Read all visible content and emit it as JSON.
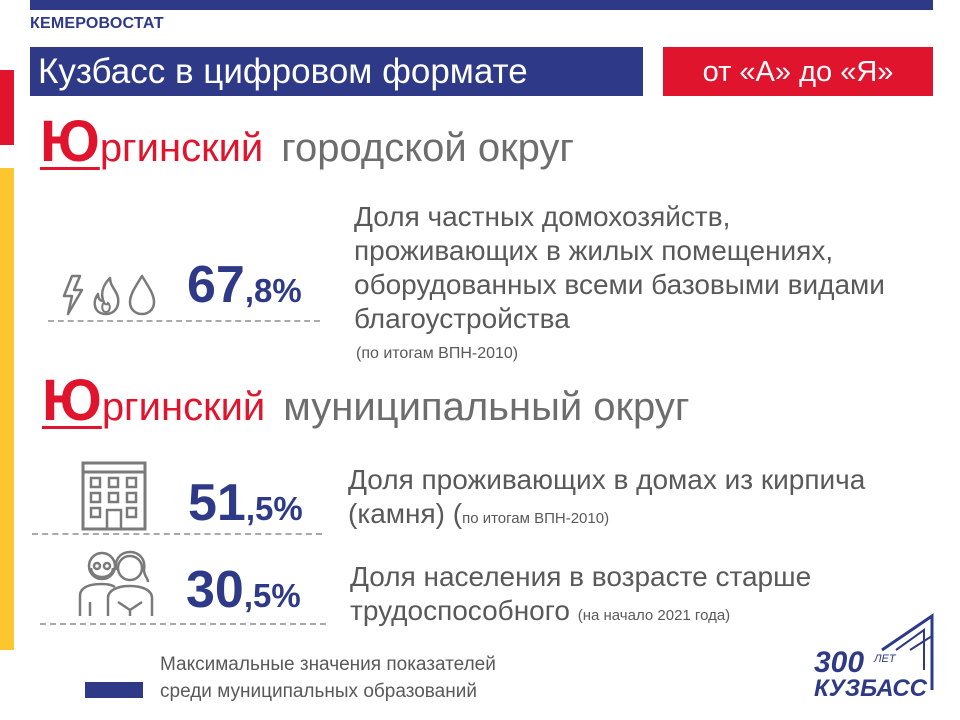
{
  "header": {
    "agency": "КЕМЕРОВОСТАТ",
    "title": "Кузбасс в цифровом формате",
    "subtitle": "от «А» до «Я»"
  },
  "sections": [
    {
      "first_letter": "Ю",
      "name_rest": "ргинский",
      "name_suffix": "городской округ",
      "stats": [
        {
          "icon": "utilities-icon",
          "value_int": "67",
          "value_frac": ",8%",
          "description": "Доля частных домохозяйств, проживающих в жилых помещениях, оборудованных всеми базовыми видами благоустройства",
          "note": "(по итогам ВПН-2010)"
        }
      ]
    },
    {
      "first_letter": "Ю",
      "name_rest": "ргинский",
      "name_suffix": "муниципальный округ",
      "stats": [
        {
          "icon": "building-icon",
          "value_int": "51",
          "value_frac": ",5%",
          "description": "Доля проживающих в домах из кирпича (камня) (",
          "note": "по итогам ВПН-2010)"
        },
        {
          "icon": "elderly-people-icon",
          "value_int": "30",
          "value_frac": ",5%",
          "description": "Доля населения в возрасте старше трудоспособного",
          "note": "(на начало 2021 года)"
        }
      ]
    }
  ],
  "legend": {
    "line1": "Максимальные значения показателей",
    "line2": "среди муниципальных образований",
    "color": "#2e3a87"
  },
  "logo": {
    "number": "300",
    "label": "ЛЕТ",
    "name": "КУЗБАСС"
  },
  "colors": {
    "navy": "#2e3a87",
    "red": "#e1142d",
    "yellow": "#fbc62e",
    "gray_text": "#595959"
  }
}
